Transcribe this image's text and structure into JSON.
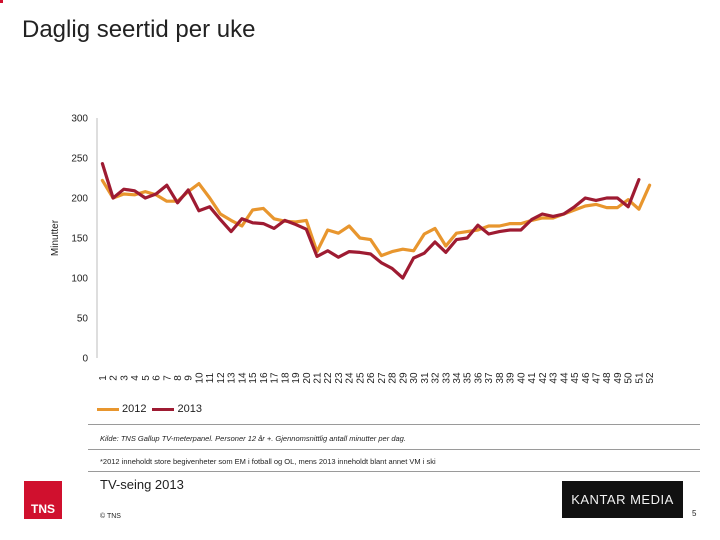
{
  "title": "Daglig seertid per uke",
  "colors": {
    "series2012": "#e8962e",
    "series2013": "#9e1b32",
    "accent": "#d0102e"
  },
  "chart_data": {
    "type": "line",
    "title": "Daglig seertid per uke",
    "xlabel": "",
    "ylabel": "Minutter",
    "ylim": [
      0,
      300
    ],
    "yticks": [
      "0",
      "50",
      "100",
      "150",
      "200",
      "250",
      "300"
    ],
    "x": [
      "1",
      "2",
      "3",
      "4",
      "5",
      "6",
      "7",
      "8",
      "9",
      "10",
      "11",
      "12",
      "13",
      "14",
      "15",
      "16",
      "17",
      "18",
      "19",
      "20",
      "21",
      "22",
      "23",
      "24",
      "25",
      "26",
      "27",
      "28",
      "29",
      "30",
      "31",
      "32",
      "33",
      "34",
      "35",
      "36",
      "37",
      "38",
      "39",
      "40",
      "41",
      "42",
      "43",
      "44",
      "45",
      "46",
      "47",
      "48",
      "49",
      "50",
      "51",
      "52"
    ],
    "series": [
      {
        "name": "2012",
        "color": "#e8962e",
        "values": [
          222,
          200,
          205,
          204,
          208,
          204,
          196,
          196,
          208,
          218,
          200,
          180,
          172,
          165,
          185,
          187,
          174,
          171,
          170,
          172,
          133,
          160,
          156,
          165,
          150,
          148,
          128,
          133,
          136,
          134,
          155,
          162,
          140,
          156,
          158,
          160,
          165,
          165,
          168,
          168,
          172,
          175,
          175,
          180,
          185,
          190,
          192,
          188,
          188,
          198,
          186,
          216
        ]
      },
      {
        "name": "2013",
        "color": "#9e1b32",
        "values": [
          243,
          200,
          211,
          209,
          200,
          205,
          216,
          194,
          210,
          184,
          189,
          173,
          158,
          174,
          169,
          168,
          162,
          172,
          167,
          161,
          127,
          134,
          126,
          133,
          132,
          130,
          119,
          112,
          100,
          125,
          131,
          145,
          132,
          148,
          150,
          166,
          155,
          158,
          160,
          160,
          173,
          180,
          177,
          180,
          189,
          200,
          197,
          200,
          200,
          189,
          223,
          null
        ]
      }
    ]
  },
  "legend": {
    "label_2012": "2012",
    "label_2013": "2013"
  },
  "source": "Kilde: TNS Gallup TV-meterpanel. Personer 12 år +. Gjennomsnittlig antall minutter per dag.",
  "note": "*2012 inneholdt store begivenheter som EM i fotball og OL, mens 2013 inneholdt blant annet VM i ski",
  "footer": {
    "title": "TV-seing 2013",
    "copyright": "© TNS",
    "page": "5",
    "tns_logo": "TNS",
    "kantar_logo": "KANTAR MEDIA"
  }
}
